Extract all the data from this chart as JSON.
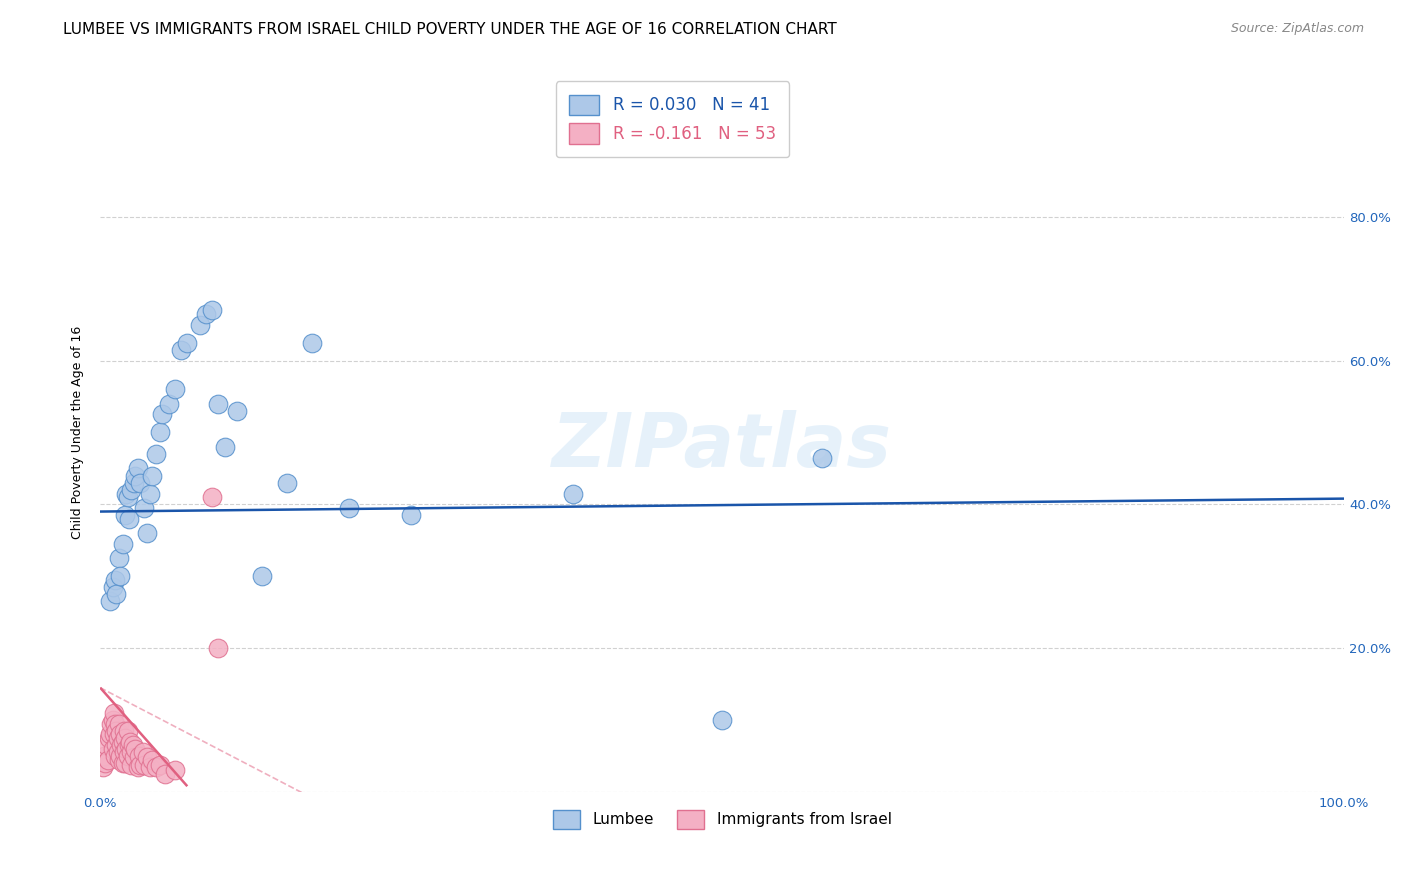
{
  "title": "LUMBEE VS IMMIGRANTS FROM ISRAEL CHILD POVERTY UNDER THE AGE OF 16 CORRELATION CHART",
  "source": "Source: ZipAtlas.com",
  "ylabel": "Child Poverty Under the Age of 16",
  "xlim": [
    0,
    1.0
  ],
  "ylim": [
    0,
    1.0
  ],
  "legend_R_lumbee": "R = 0.030",
  "legend_N_lumbee": "N = 41",
  "legend_R_israel": "R = -0.161",
  "legend_N_israel": "N = 53",
  "legend_labels": [
    "Lumbee",
    "Immigrants from Israel"
  ],
  "lumbee_color": "#adc8e8",
  "israel_color": "#f4b0c4",
  "lumbee_edge_color": "#5590cc",
  "israel_edge_color": "#e07090",
  "lumbee_line_color": "#1a55aa",
  "israel_line_color": "#e06080",
  "watermark": "ZIPatlas",
  "lumbee_x": [
    0.008,
    0.01,
    0.012,
    0.013,
    0.015,
    0.016,
    0.018,
    0.02,
    0.021,
    0.022,
    0.023,
    0.025,
    0.027,
    0.028,
    0.03,
    0.032,
    0.035,
    0.038,
    0.04,
    0.042,
    0.045,
    0.048,
    0.05,
    0.055,
    0.06,
    0.065,
    0.07,
    0.08,
    0.085,
    0.09,
    0.095,
    0.1,
    0.11,
    0.13,
    0.15,
    0.17,
    0.2,
    0.25,
    0.38,
    0.58,
    0.5
  ],
  "lumbee_y": [
    0.265,
    0.285,
    0.295,
    0.275,
    0.325,
    0.3,
    0.345,
    0.385,
    0.415,
    0.41,
    0.38,
    0.42,
    0.43,
    0.44,
    0.45,
    0.43,
    0.395,
    0.36,
    0.415,
    0.44,
    0.47,
    0.5,
    0.525,
    0.54,
    0.56,
    0.615,
    0.625,
    0.65,
    0.665,
    0.67,
    0.54,
    0.48,
    0.53,
    0.3,
    0.43,
    0.625,
    0.395,
    0.385,
    0.415,
    0.465,
    0.1
  ],
  "israel_x": [
    0.002,
    0.003,
    0.004,
    0.005,
    0.006,
    0.007,
    0.008,
    0.009,
    0.01,
    0.01,
    0.011,
    0.011,
    0.012,
    0.012,
    0.013,
    0.013,
    0.014,
    0.014,
    0.015,
    0.015,
    0.016,
    0.016,
    0.017,
    0.018,
    0.018,
    0.019,
    0.019,
    0.02,
    0.02,
    0.021,
    0.022,
    0.022,
    0.023,
    0.024,
    0.025,
    0.025,
    0.026,
    0.027,
    0.028,
    0.03,
    0.031,
    0.032,
    0.034,
    0.035,
    0.038,
    0.04,
    0.042,
    0.045,
    0.048,
    0.052,
    0.06,
    0.095,
    0.09
  ],
  "israel_y": [
    0.035,
    0.05,
    0.04,
    0.065,
    0.045,
    0.075,
    0.08,
    0.095,
    0.1,
    0.06,
    0.11,
    0.08,
    0.05,
    0.095,
    0.065,
    0.085,
    0.055,
    0.075,
    0.095,
    0.045,
    0.08,
    0.05,
    0.065,
    0.07,
    0.04,
    0.085,
    0.055,
    0.075,
    0.04,
    0.06,
    0.085,
    0.05,
    0.065,
    0.07,
    0.055,
    0.038,
    0.065,
    0.048,
    0.06,
    0.035,
    0.05,
    0.038,
    0.055,
    0.038,
    0.048,
    0.035,
    0.045,
    0.035,
    0.038,
    0.025,
    0.03,
    0.2,
    0.41
  ],
  "title_fontsize": 11,
  "source_fontsize": 9,
  "axis_label_fontsize": 9,
  "tick_fontsize": 9.5,
  "tick_color": "#2266bb",
  "grid_color": "#cccccc",
  "background_color": "#ffffff"
}
